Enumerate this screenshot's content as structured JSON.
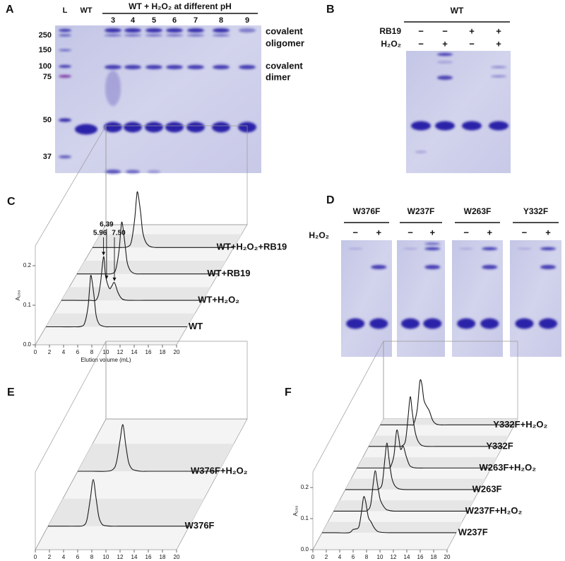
{
  "panel_labels": [
    "A",
    "B",
    "C",
    "D",
    "E",
    "F"
  ],
  "gel_a": {
    "header": "WT + H₂O₂ at different pH",
    "lanes": [
      "L",
      "WT",
      "3",
      "4",
      "5",
      "6",
      "7",
      "8",
      "9"
    ],
    "mw_markers": [
      "250",
      "150",
      "100",
      "75",
      "50",
      "37"
    ],
    "annotations": [
      "covalent",
      "oligomer",
      "covalent",
      "dimer"
    ]
  },
  "gel_b": {
    "title": "WT",
    "rows": [
      {
        "name": "RB19",
        "signs": [
          "−",
          "−",
          "+",
          "+"
        ]
      },
      {
        "name": "H₂O₂",
        "signs": [
          "−",
          "+",
          "−",
          "+"
        ]
      }
    ]
  },
  "gels_d": {
    "row_label": "H₂O₂",
    "gels": [
      {
        "title": "W376F",
        "signs": [
          "−",
          "+"
        ]
      },
      {
        "title": "W237F",
        "signs": [
          "−",
          "+"
        ]
      },
      {
        "title": "W263F",
        "signs": [
          "−",
          "+"
        ]
      },
      {
        "title": "Y332F",
        "signs": [
          "−",
          "+"
        ]
      }
    ]
  },
  "chart_data": [
    {
      "type": "waterfall",
      "x_label": "Elution volume (mL)",
      "y_label": "A₂₈₀",
      "color": "#1a1a1a",
      "xlim": [
        0,
        20
      ],
      "xticks": [
        0,
        2,
        4,
        6,
        8,
        10,
        12,
        14,
        16,
        18,
        20
      ],
      "ylim": [
        0,
        0.25
      ],
      "yticks": [
        {
          "value": 0,
          "label": "0.0"
        },
        0.1,
        0.2
      ],
      "x": [
        0,
        2,
        4,
        5,
        5.5,
        5.96,
        6.2,
        6.39,
        6.8,
        7.1,
        7.5,
        8,
        8.5,
        9,
        10,
        12,
        16,
        20
      ],
      "series": [
        {
          "name": "WT",
          "values": [
            0,
            0,
            0,
            0.001,
            0.01,
            0.05,
            0.1,
            0.13,
            0.08,
            0.03,
            0.008,
            0.002,
            0,
            0,
            0,
            0,
            0,
            0
          ]
        },
        {
          "name": "WT+H₂O₂",
          "values": [
            0,
            0,
            0,
            0.003,
            0.04,
            0.11,
            0.07,
            0.05,
            0.03,
            0.035,
            0.045,
            0.02,
            0.005,
            0.001,
            0,
            0,
            0,
            0
          ],
          "annotations": [
            {
              "label": "5.96",
              "x": 5.96
            },
            {
              "label": "6.39",
              "x": 6.39
            },
            {
              "label": "7.50",
              "x": 7.5
            }
          ]
        },
        {
          "name": "WT+RB19",
          "values": [
            0,
            0,
            0,
            0.001,
            0.012,
            0.06,
            0.11,
            0.13,
            0.075,
            0.03,
            0.01,
            0.002,
            0,
            0,
            0,
            0,
            0,
            0
          ]
        },
        {
          "name": "WT+H₂O₂+RB19",
          "values": [
            0,
            0,
            0,
            0.002,
            0.015,
            0.07,
            0.12,
            0.14,
            0.09,
            0.04,
            0.015,
            0.004,
            0.001,
            0,
            0,
            0,
            0,
            0
          ]
        }
      ]
    },
    {
      "type": "waterfall",
      "x_label": "Elution volume (mL)",
      "color": "#1a1a1a",
      "xlim": [
        0,
        20
      ],
      "xticks": [
        0,
        2,
        4,
        6,
        8,
        10,
        12,
        14,
        16,
        18,
        20
      ],
      "ylim": [
        0,
        0.25
      ],
      "x": [
        0,
        2,
        4,
        5,
        5.5,
        6,
        6.4,
        6.8,
        7.2,
        7.6,
        8,
        9,
        10,
        12,
        16,
        20
      ],
      "series": [
        {
          "name": "W376F",
          "values": [
            0,
            0,
            0,
            0.002,
            0.02,
            0.09,
            0.15,
            0.09,
            0.03,
            0.008,
            0.002,
            0,
            0,
            0,
            0,
            0
          ]
        },
        {
          "name": "W376F+H₂O₂",
          "values": [
            0,
            0,
            0,
            0.006,
            0.03,
            0.1,
            0.15,
            0.085,
            0.03,
            0.01,
            0.004,
            0,
            0,
            0,
            0,
            0
          ]
        }
      ]
    },
    {
      "type": "waterfall",
      "x_label": "Elution volume (mL)",
      "y_label": "A₂₈₀",
      "color": "#1a1a1a",
      "xlim": [
        0,
        20
      ],
      "xticks": [
        0,
        2,
        4,
        6,
        8,
        10,
        12,
        14,
        16,
        18,
        20
      ],
      "ylim": [
        0,
        0.25
      ],
      "yticks": [
        {
          "value": 0,
          "label": "0.0"
        },
        0.1,
        0.2
      ],
      "x": [
        0,
        2,
        4,
        4.6,
        5,
        5.5,
        5.9,
        6.2,
        6.5,
        6.9,
        7.3,
        7.8,
        8.3,
        9,
        10,
        12,
        16,
        20
      ],
      "series": [
        {
          "name": "W237F",
          "values": [
            0,
            0,
            0,
            0.01,
            0.012,
            0.02,
            0.07,
            0.115,
            0.1,
            0.05,
            0.035,
            0.015,
            0.004,
            0.001,
            0,
            0,
            0,
            0
          ]
        },
        {
          "name": "W237F+H₂O₂",
          "values": [
            0,
            0,
            0,
            0,
            0.002,
            0.02,
            0.09,
            0.13,
            0.09,
            0.04,
            0.02,
            0.006,
            0.002,
            0,
            0,
            0,
            0,
            0
          ]
        },
        {
          "name": "W263F",
          "values": [
            0,
            0,
            0,
            0,
            0.002,
            0.02,
            0.1,
            0.15,
            0.1,
            0.04,
            0.015,
            0.004,
            0.001,
            0,
            0,
            0,
            0,
            0
          ]
        },
        {
          "name": "W263F+H₂O₂",
          "values": [
            0,
            0,
            0,
            0,
            0.004,
            0.04,
            0.12,
            0.1,
            0.06,
            0.07,
            0.04,
            0.01,
            0.002,
            0,
            0,
            0,
            0,
            0
          ]
        },
        {
          "name": "Y332F",
          "values": [
            0,
            0,
            0,
            0,
            0.002,
            0.02,
            0.1,
            0.16,
            0.11,
            0.05,
            0.02,
            0.005,
            0.001,
            0,
            0,
            0,
            0,
            0
          ]
        },
        {
          "name": "Y332F+H₂O₂",
          "values": [
            0,
            0,
            0,
            0,
            0.004,
            0.05,
            0.14,
            0.13,
            0.08,
            0.06,
            0.045,
            0.015,
            0.003,
            0,
            0,
            0,
            0,
            0
          ]
        }
      ]
    }
  ]
}
